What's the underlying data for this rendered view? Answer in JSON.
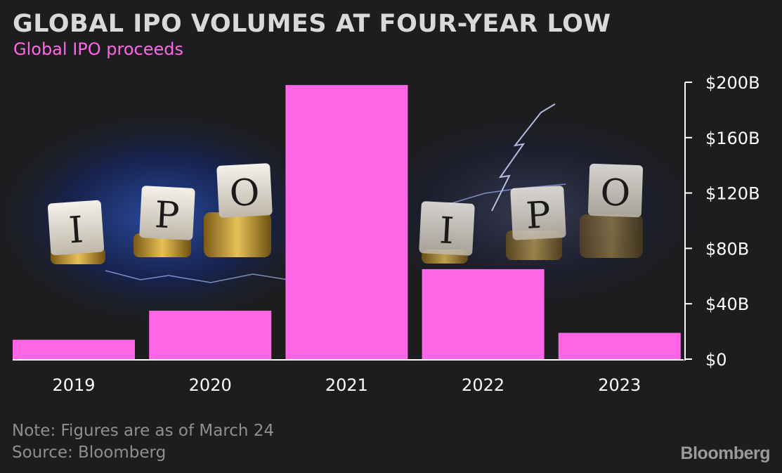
{
  "title": "GLOBAL IPO VOLUMES AT FOUR-YEAR LOW",
  "subtitle": "Global IPO proceeds",
  "note": "Note: Figures are as of March 24",
  "source": "Source: Bloomberg",
  "logo": "Bloomberg",
  "background_tiles": [
    "I",
    "P",
    "O",
    "I",
    "P",
    "O"
  ],
  "colors": {
    "background": "#1d1d1f",
    "bar": "#ff66e6",
    "title": "#d9d9d9",
    "axis_text": "#ffffff",
    "muted_text": "#8f8f8f"
  },
  "chart_data": {
    "type": "bar",
    "categories": [
      "2019",
      "2020",
      "2021",
      "2022",
      "2023"
    ],
    "values": [
      14,
      35,
      198,
      65,
      19
    ],
    "title": "GLOBAL IPO VOLUMES AT FOUR-YEAR LOW",
    "subtitle": "Global IPO proceeds",
    "xlabel": "",
    "ylabel": "",
    "ylim": [
      0,
      200
    ],
    "yticks": [
      0,
      40,
      80,
      120,
      160,
      200
    ],
    "ytick_labels": [
      "$0",
      "$40B",
      "$80B",
      "$120B",
      "$160B",
      "$200B"
    ],
    "y_axis_side": "right",
    "grid": false,
    "legend": "none"
  }
}
